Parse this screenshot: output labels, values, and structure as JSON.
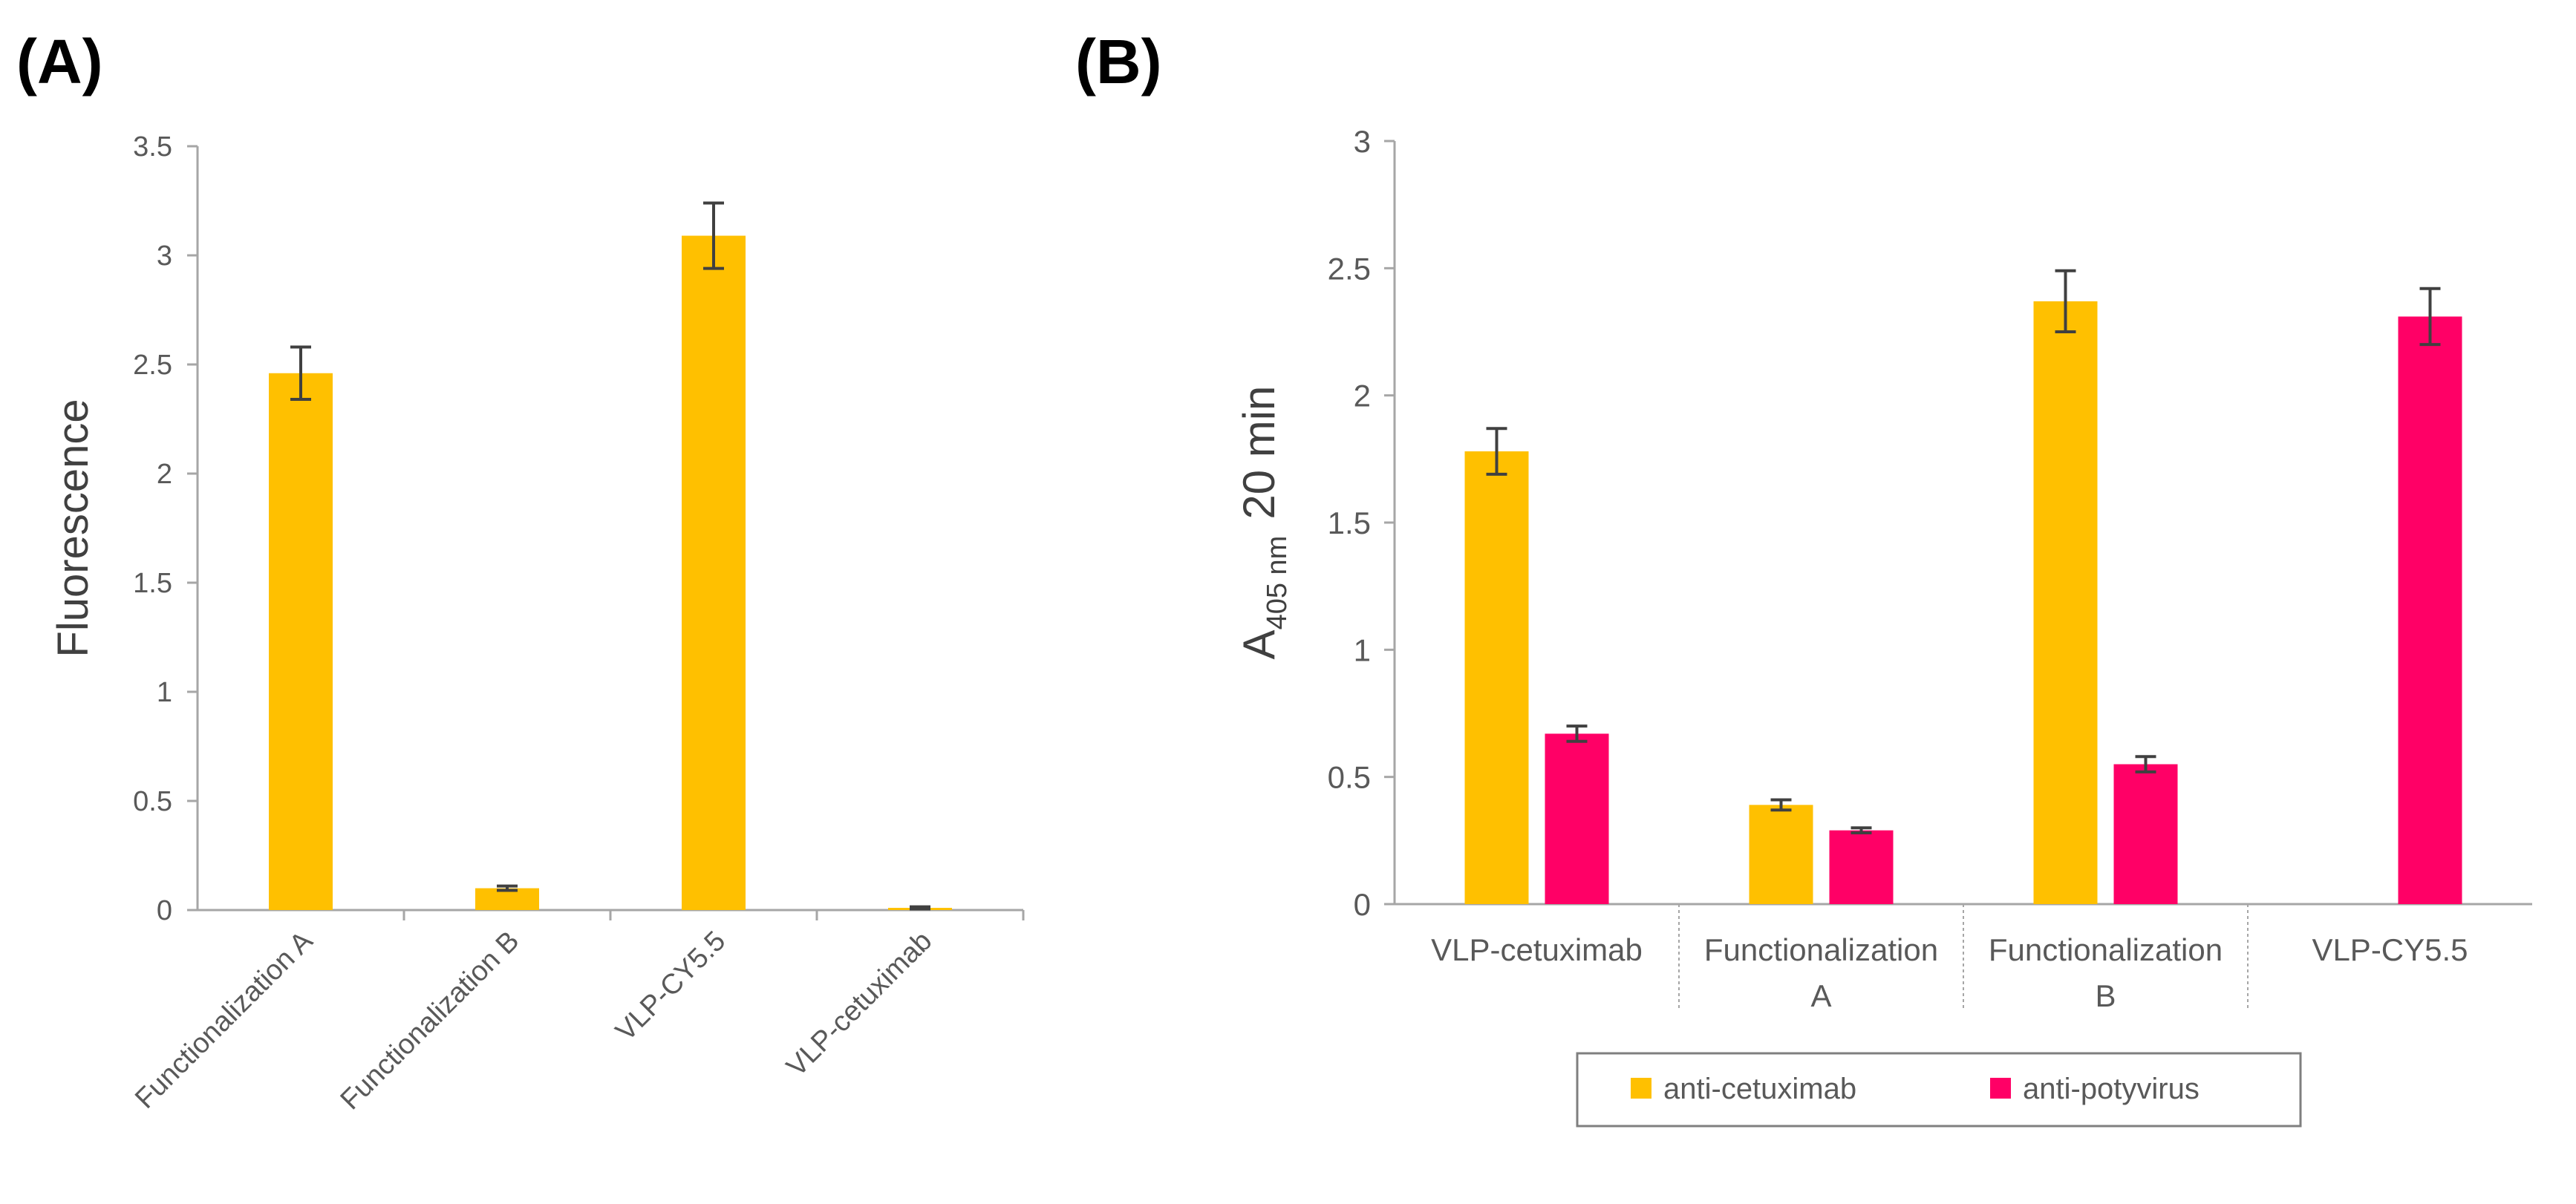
{
  "panels": {
    "a_label": "(A)",
    "b_label": "(B)"
  },
  "colors": {
    "anti_cetuximab": "#FFC000",
    "anti_potyvirus": "#FF0066",
    "axis": "#A6A6A6",
    "error_bar": "#404040",
    "text": "#595959"
  },
  "chart_data": [
    {
      "type": "bar",
      "panel": "(A)",
      "ylabel": "Fluorescence",
      "ylim": [
        0,
        3.5
      ],
      "yticks": [
        "0",
        "0.5",
        "1",
        "1.5",
        "2",
        "2.5",
        "3",
        "3.5"
      ],
      "categories": [
        "Functionalization A",
        "Functionalization B",
        "VLP-CY5.5",
        "VLP-cetuximab"
      ],
      "series": [
        {
          "values": [
            2.46,
            0.1,
            3.09,
            0.01
          ],
          "errors": [
            0.12,
            0.01,
            0.15,
            0.005
          ],
          "color": "#FFC000"
        }
      ],
      "grid": false,
      "legend": false
    },
    {
      "type": "bar",
      "panel": "(B)",
      "ylabel_main": "A",
      "ylabel_sub": "405 nm",
      "ylabel_tail": "20 min",
      "ylim": [
        0,
        3
      ],
      "yticks": [
        "0",
        "0.5",
        "1",
        "1.5",
        "2",
        "2.5",
        "3"
      ],
      "categories": [
        [
          "VLP-cetuximab"
        ],
        [
          "Functionalization",
          "A"
        ],
        [
          "Functionalization",
          "B"
        ],
        [
          "VLP-CY5.5"
        ]
      ],
      "series": [
        {
          "name": "anti-cetuximab",
          "values": [
            1.78,
            0.39,
            2.37,
            null
          ],
          "errors": [
            0.09,
            0.02,
            0.12,
            null
          ],
          "color": "#FFC000"
        },
        {
          "name": "anti-potyvirus",
          "values": [
            0.67,
            0.29,
            0.55,
            2.31
          ],
          "errors": [
            0.03,
            0.01,
            0.03,
            0.11
          ],
          "color": "#FF0066"
        }
      ],
      "grid": false,
      "legend": "bottom-center"
    }
  ]
}
